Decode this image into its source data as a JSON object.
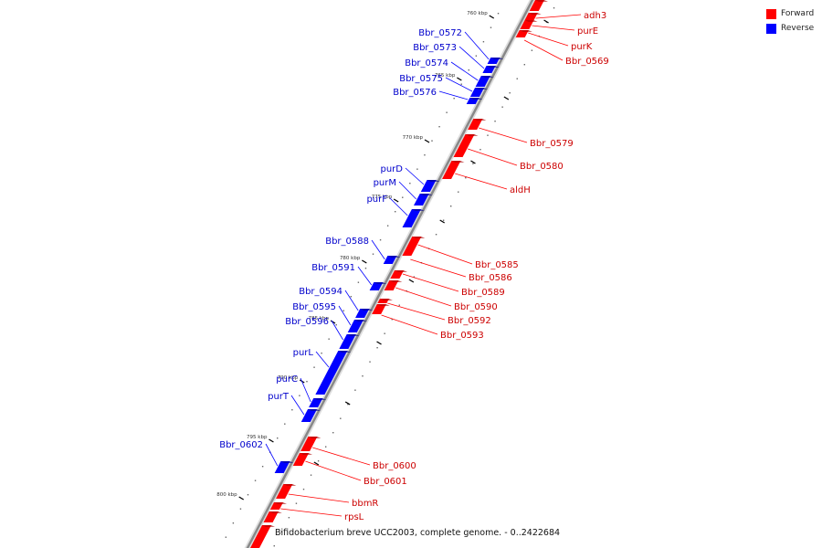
{
  "caption": "Bifidobacterium breve UCC2003, complete genome. - 0..2422684",
  "legend": [
    {
      "label": "Forward",
      "color": "#ff0000"
    },
    {
      "label": "Reverse",
      "color": "#0000ff"
    }
  ],
  "colors": {
    "forward": "#ff0000",
    "reverse": "#0000ff",
    "backbone": "#888888"
  },
  "chart_data": {
    "type": "genome-map",
    "ticks": [
      "760 kbp",
      "765 kbp",
      "770 kbp",
      "775 kbp",
      "780 kbp",
      "785 kbp",
      "790 kbp",
      "795 kbp",
      "800 kbp"
    ],
    "forward_genes": [
      "adh3",
      "purE",
      "purK",
      "Bbr_0569",
      "Bbr_0579",
      "Bbr_0580",
      "aldH",
      "Bbr_0585",
      "Bbr_0586",
      "Bbr_0589",
      "Bbr_0590",
      "Bbr_0592",
      "Bbr_0593",
      "Bbr_0600",
      "Bbr_0601",
      "bbmR",
      "rpsL"
    ],
    "reverse_genes": [
      "Bbr_0572",
      "Bbr_0573",
      "Bbr_0574",
      "Bbr_0575",
      "Bbr_0576",
      "purD",
      "purM",
      "purF",
      "Bbr_0588",
      "Bbr_0591",
      "Bbr_0594",
      "Bbr_0595",
      "Bbr_0596",
      "purL",
      "purC",
      "purT",
      "Bbr_0602"
    ]
  }
}
